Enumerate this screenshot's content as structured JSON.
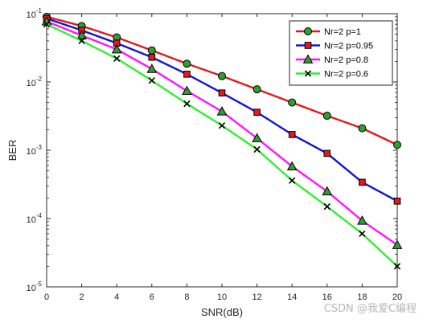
{
  "chart_data": {
    "type": "line",
    "title": "",
    "xlabel": "SNR(dB)",
    "ylabel": "BER",
    "yscale": "log",
    "xlim": [
      0,
      20
    ],
    "ylim": [
      1e-05,
      0.1
    ],
    "x": [
      0,
      2,
      4,
      6,
      8,
      10,
      12,
      14,
      16,
      18,
      20
    ],
    "x_tick_labels": [
      "0",
      "2",
      "4",
      "6",
      "8",
      "10",
      "12",
      "14",
      "16",
      "18",
      "20"
    ],
    "y_ticks": [
      {
        "value": 1e-05,
        "base": "10",
        "exp": "-5"
      },
      {
        "value": 0.0001,
        "base": "10",
        "exp": "-4"
      },
      {
        "value": 0.001,
        "base": "10",
        "exp": "-3"
      },
      {
        "value": 0.01,
        "base": "10",
        "exp": "-2"
      },
      {
        "value": 0.1,
        "base": "10",
        "exp": "-1"
      }
    ],
    "grid": false,
    "legend_position": "top-right",
    "series": [
      {
        "name": "Nr=2 p=1",
        "color": "#e3191c",
        "marker": "circle",
        "marker_face": "#2e9e2e",
        "values": [
          0.09,
          0.066,
          0.045,
          0.029,
          0.0185,
          0.0122,
          0.0078,
          0.005,
          0.0032,
          0.0021,
          0.0012
        ]
      },
      {
        "name": "Nr=2 p=0.95",
        "color": "#1414d4",
        "marker": "square",
        "marker_face": "#e3191c",
        "values": [
          0.085,
          0.057,
          0.037,
          0.023,
          0.013,
          0.0069,
          0.0036,
          0.0017,
          0.0009,
          0.00034,
          0.00018
        ]
      },
      {
        "name": "Nr=2 p=0.8",
        "color": "#ff14ff",
        "marker": "triangle",
        "marker_face": "#2e9e2e",
        "values": [
          0.077,
          0.048,
          0.03,
          0.0155,
          0.0074,
          0.0037,
          0.0015,
          0.00058,
          0.00025,
          9.3e-05,
          4.1e-05
        ]
      },
      {
        "name": "Nr=2 p=0.6",
        "color": "#2ef02e",
        "marker": "x",
        "marker_face": "none",
        "values": [
          0.07,
          0.04,
          0.022,
          0.0105,
          0.0048,
          0.0023,
          0.00103,
          0.00036,
          0.00015,
          6e-05,
          2e-05
        ]
      }
    ]
  },
  "watermark": "CSDN @我爱C编程"
}
